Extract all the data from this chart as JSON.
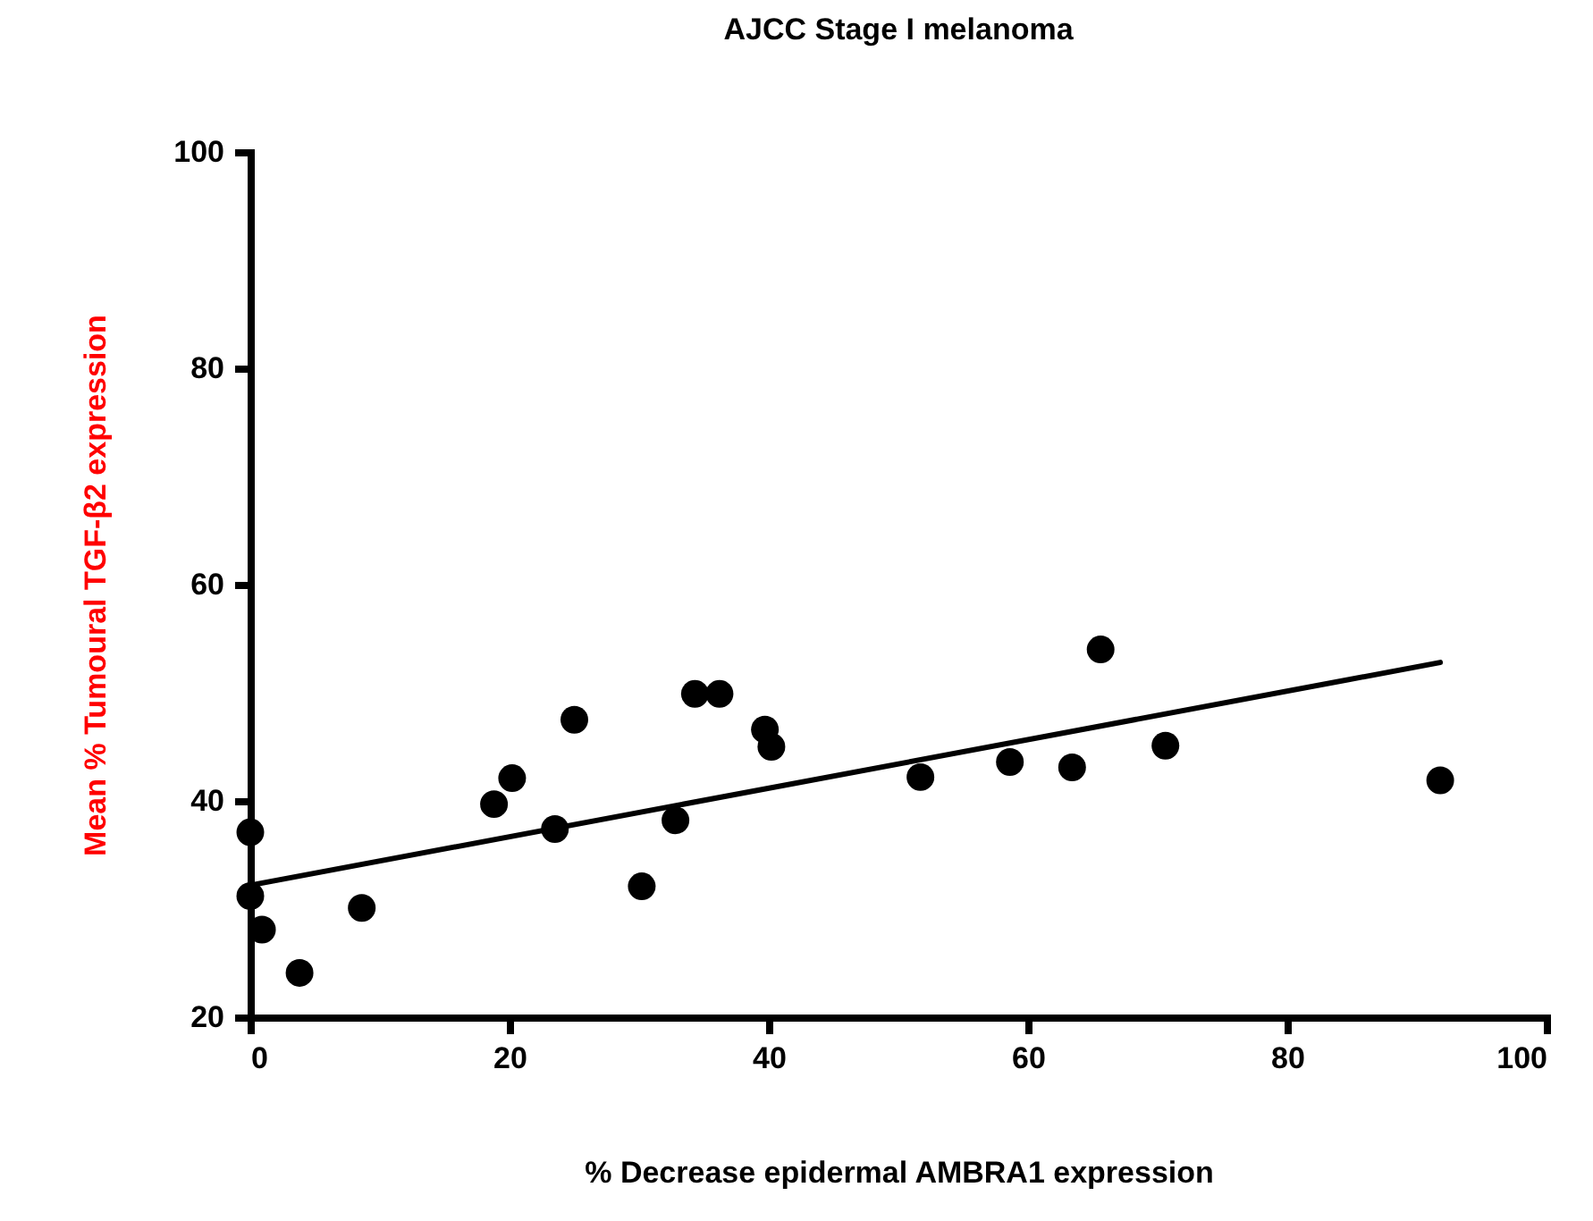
{
  "chart_data": {
    "type": "scatter",
    "title": "AJCC Stage I melanoma",
    "xlabel": "% Decrease epidermal AMBRA1 expression",
    "ylabel": "Mean % Tumoural TGF-β2 expression",
    "xlim": [
      0,
      100
    ],
    "ylim": [
      20,
      100
    ],
    "xticks": [
      0,
      20,
      40,
      60,
      80,
      100
    ],
    "yticks": [
      20,
      40,
      60,
      80,
      100
    ],
    "grid": false,
    "series": [
      {
        "marker": "circle",
        "color": "#000000",
        "x": [
          0,
          0,
          0.9,
          3.8,
          8.6,
          18.8,
          20.2,
          23.5,
          25,
          30.2,
          32.8,
          34.3,
          36.2,
          39.7,
          40.2,
          51.7,
          58.6,
          63.4,
          65.6,
          70.6,
          91.8
        ],
        "values": [
          37.1,
          31.2,
          28.1,
          24.1,
          30.1,
          39.7,
          42.1,
          37.4,
          47.5,
          32.1,
          38.2,
          49.9,
          49.9,
          46.6,
          45,
          42.2,
          43.6,
          43.1,
          54,
          45.1,
          41.9
        ]
      },
      {
        "type": "line",
        "marker": "none",
        "color": "#000000",
        "x": [
          0,
          91.8
        ],
        "values": [
          32.2,
          52.8
        ]
      }
    ]
  }
}
